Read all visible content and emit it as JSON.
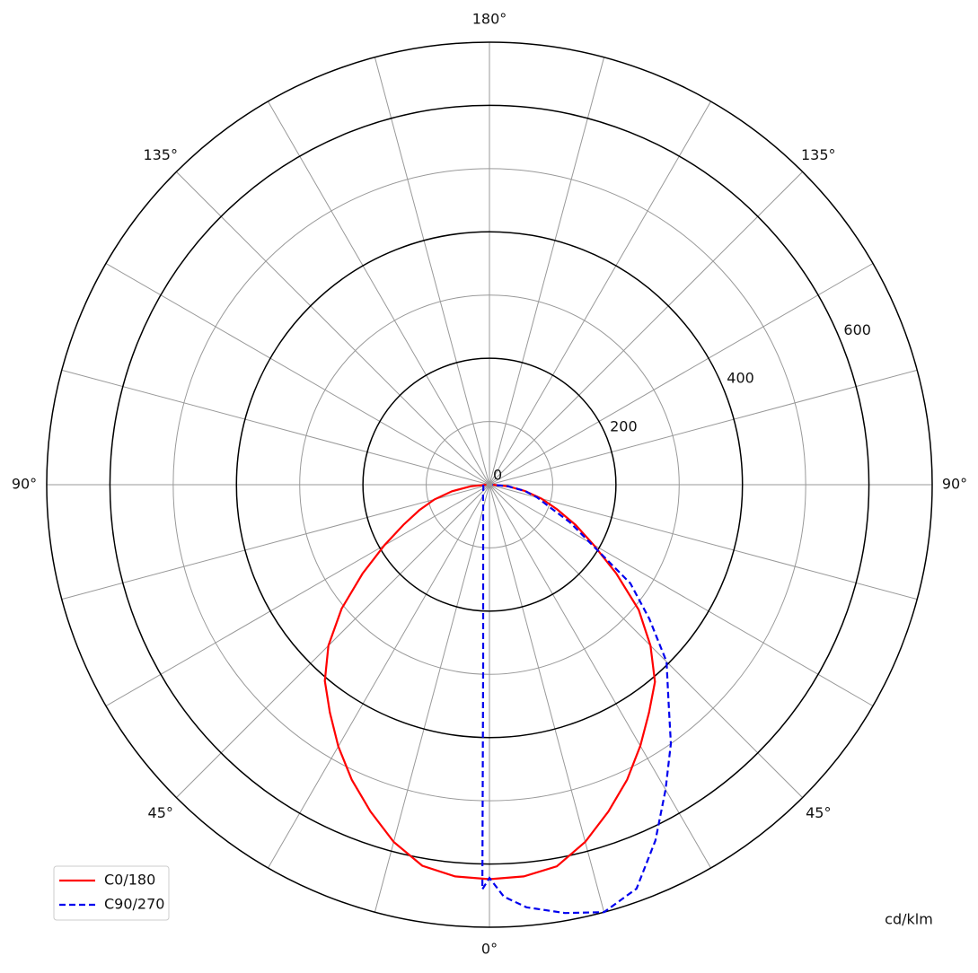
{
  "chart_data": {
    "type": "polar",
    "unit_label": "cd/klm",
    "rlim": [
      0,
      700
    ],
    "rticks": [
      0,
      200,
      400,
      600
    ],
    "rgrid_major": [
      200,
      400,
      600,
      700
    ],
    "rgrid_minor": [
      100,
      300,
      500
    ],
    "thetagrid_step": 15,
    "thetaticks": [
      {
        "value": 0,
        "label": "0°"
      },
      {
        "value": -45,
        "label": "45°"
      },
      {
        "value": 45,
        "label": "45°"
      },
      {
        "value": -90,
        "label": "90°"
      },
      {
        "value": 90,
        "label": "90°"
      },
      {
        "value": -135,
        "label": "135°"
      },
      {
        "value": 135,
        "label": "135°"
      },
      {
        "value": 180,
        "label": "180°"
      }
    ],
    "legend": "lower left",
    "series": [
      {
        "name": "C0/180",
        "color": "#ff0000",
        "dash": false,
        "angles": [
          -90,
          -85,
          -80,
          -75,
          -70,
          -65,
          -60,
          -55,
          -50,
          -45,
          -40,
          -35,
          -30,
          -25,
          -20,
          -15,
          -10,
          -5,
          0,
          5,
          10,
          15,
          20,
          25,
          30,
          35,
          40,
          45,
          50,
          55,
          60,
          65,
          70,
          75,
          80,
          85,
          90
        ],
        "values": [
          5,
          30,
          60,
          90,
          118,
          150,
          192,
          245,
          305,
          360,
          405,
          440,
          478,
          515,
          550,
          585,
          612,
          622,
          624,
          622,
          613,
          585,
          550,
          515,
          477,
          440,
          407,
          360,
          308,
          245,
          190,
          150,
          114,
          85,
          57,
          30,
          5
        ]
      },
      {
        "name": "C90/270",
        "color": "#0000ee",
        "dash": true,
        "angles": [
          -90,
          -60,
          -40,
          -20,
          -10,
          -5,
          -3,
          -2,
          -1,
          0,
          2,
          5,
          10,
          15,
          20,
          25,
          30,
          35,
          40,
          45,
          50,
          55,
          60,
          65,
          70,
          75,
          80,
          85,
          90
        ],
        "values": [
          10,
          11,
          16,
          29,
          57,
          114,
          190,
          284,
          640,
          622,
          652,
          671,
          688,
          700,
          680,
          621,
          557,
          500,
          440,
          396,
          330,
          272,
          184,
          140,
          99,
          78,
          57,
          30,
          5
        ]
      }
    ]
  }
}
